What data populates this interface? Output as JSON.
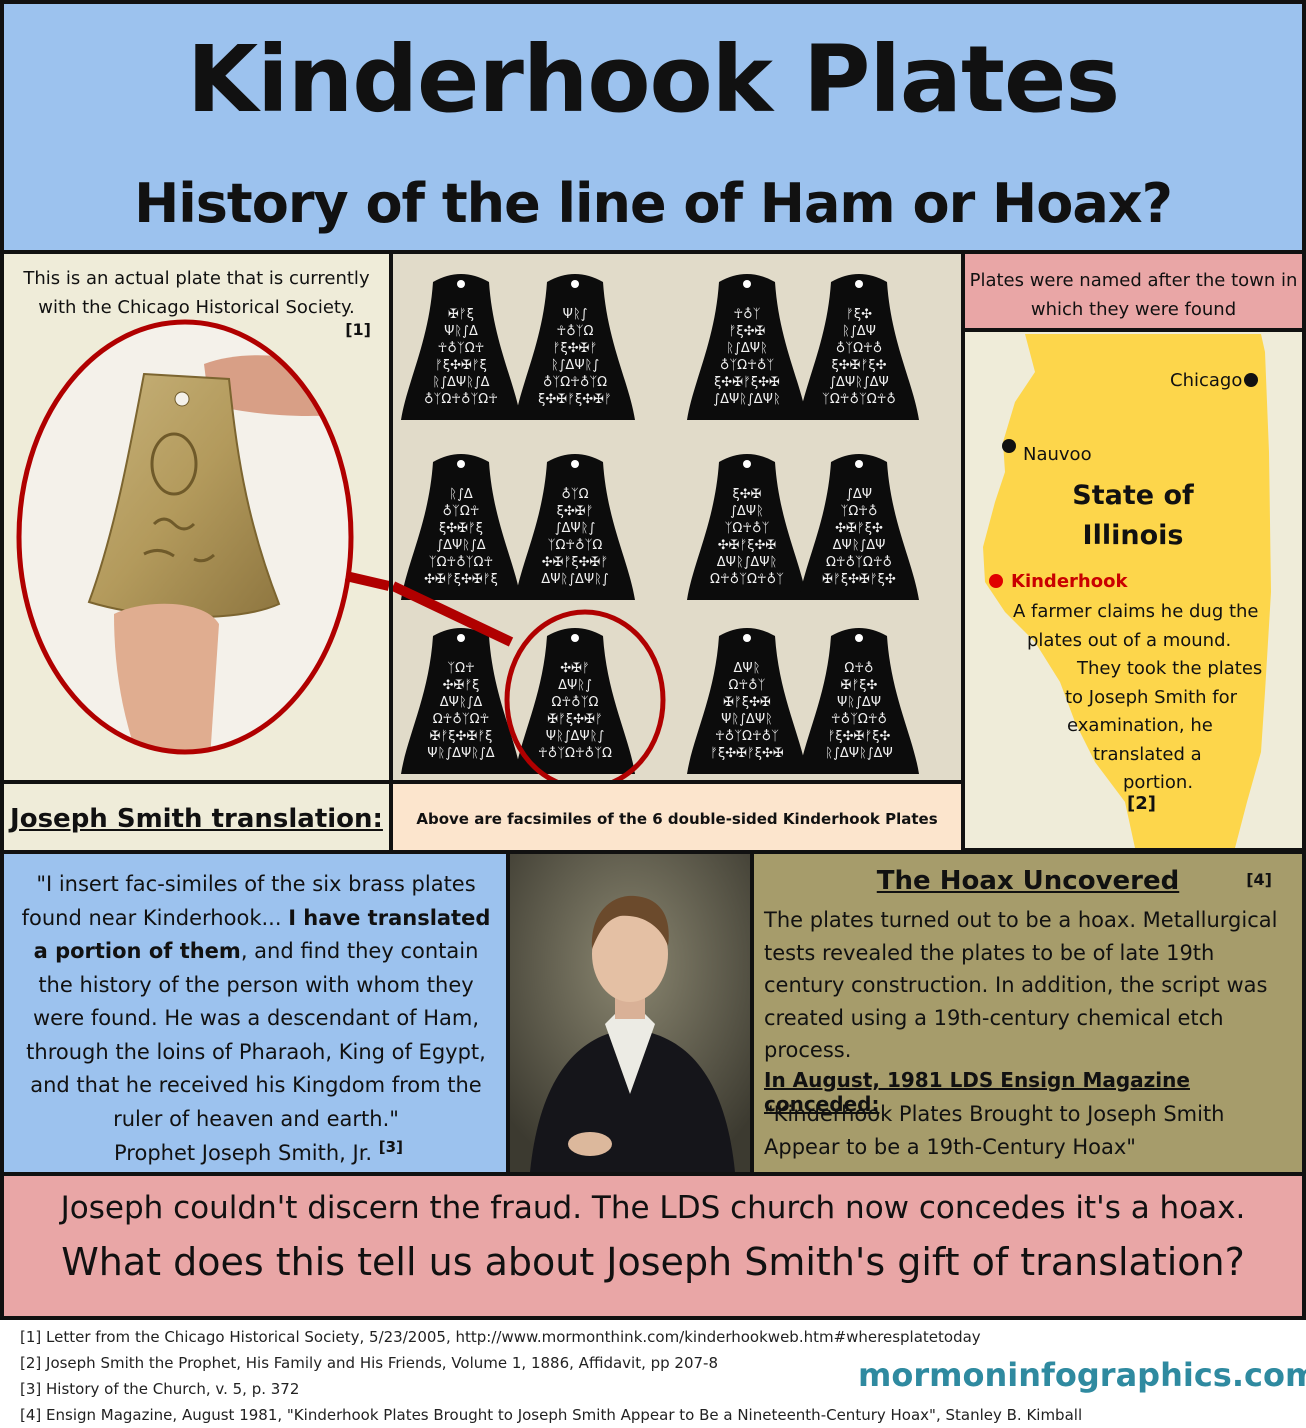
{
  "header": {
    "title": "Kinderhook Plates",
    "subtitle": "History of the line of Ham or Hoax?"
  },
  "photo_panel": {
    "caption": "This is an actual plate that is currently with the Chicago Historical Society.",
    "ref": "[1]"
  },
  "plates_panel": {
    "caption": "Above are facsimiles of the 6 double-sided Kinderhook Plates"
  },
  "map_panel": {
    "caption": "Plates were named after the town in which they were found",
    "chicago": "Chicago",
    "nauvoo": "Nauvoo",
    "state_line1": "State of",
    "state_line2": "Illinois",
    "kinderhook": "Kinderhook",
    "note_lines": [
      "A farmer claims he dug the",
      "plates out of a mound.",
      "They took the plates",
      "to Joseph Smith for",
      "examination, he",
      "translated a",
      "portion."
    ],
    "ref": "[2]",
    "colors": {
      "state": "#fdd64b",
      "marker": "#e00000"
    }
  },
  "translation": {
    "heading": "Joseph Smith translation:",
    "quote_part1": "\"I insert fac-similes of the six brass plates found near Kinderhook... ",
    "quote_bold": "I have translated a portion of them",
    "quote_part2": ", and find they contain the history of the person with whom they were found.  He was a descendant of Ham, through the loins of Pharaoh, King of Egypt, and that he received his Kingdom from the ruler of heaven and earth.\"",
    "attribution": "Prophet Joseph Smith, Jr.",
    "ref": "[3]"
  },
  "hoax": {
    "heading": "The Hoax Uncovered",
    "ref": "[4]",
    "text": "The plates turned out to be a hoax. Metallurgical tests revealed the plates to be of late 19th century construction.  In addition, the script was created using a 19th-century chemical etch process.",
    "sub_heading": "In August, 1981 LDS Ensign Magazine conceded:",
    "quote": "\"Kinderhook Plates Brought to Joseph Smith Appear to be a 19th-Century Hoax\""
  },
  "banner": {
    "line1": "Joseph couldn't discern the fraud.  The LDS church now concedes it's a hoax.",
    "line2": "What does this tell us about Joseph Smith's gift of translation?"
  },
  "footnotes": [
    "[1]  Letter from the Chicago Historical Society, 5/23/2005, http://www.mormonthink.com/kinderhookweb.htm#wheresplatetoday",
    "[2]  Joseph Smith the Prophet, His Family and His Friends, Volume 1, 1886,  Affidavit, pp 207-8",
    "[3]  History of the Church, v. 5, p. 372",
    "[4] Ensign Magazine, August 1981, \"Kinderhook Plates Brought to Joseph Smith Appear to Be a Nineteenth-Century Hoax\", Stanley B. Kimball"
  ],
  "site": "mormoninfographics.com"
}
